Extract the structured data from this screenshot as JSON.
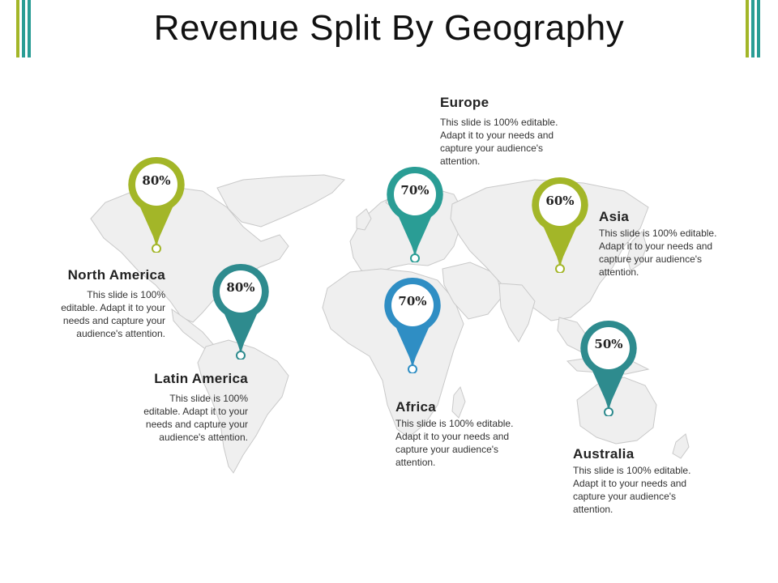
{
  "title": "Revenue Split By Geography",
  "colors": {
    "green": "#a3b628",
    "teal": "#2a9d95",
    "teal_dark": "#2e8b8e",
    "blue": "#2f8ec4",
    "map_fill": "#efefef",
    "map_stroke": "#c9c9c9"
  },
  "regions": [
    {
      "id": "north-america",
      "name": "North America",
      "value": "80%",
      "color": "green",
      "description": "This slide is 100% editable. Adapt it to your needs and capture your audience's attention."
    },
    {
      "id": "latin-america",
      "name": "Latin America",
      "value": "80%",
      "color": "teal_dark",
      "description": "This slide is 100% editable. Adapt it to your needs and capture your audience's attention."
    },
    {
      "id": "europe",
      "name": "Europe",
      "value": "70%",
      "color": "teal",
      "description": "This slide is 100% editable. Adapt it to your needs and capture your audience's attention."
    },
    {
      "id": "africa",
      "name": "Africa",
      "value": "70%",
      "color": "blue",
      "description": "This slide is 100% editable. Adapt it to your needs and capture your audience's attention."
    },
    {
      "id": "asia",
      "name": "Asia",
      "value": "60%",
      "color": "green",
      "description": "This slide is 100% editable. Adapt it to your needs and capture your audience's attention."
    },
    {
      "id": "australia",
      "name": "Australia",
      "value": "50%",
      "color": "teal_dark",
      "description": "This slide is 100% editable. Adapt it to your needs and capture your audience's attention."
    }
  ]
}
